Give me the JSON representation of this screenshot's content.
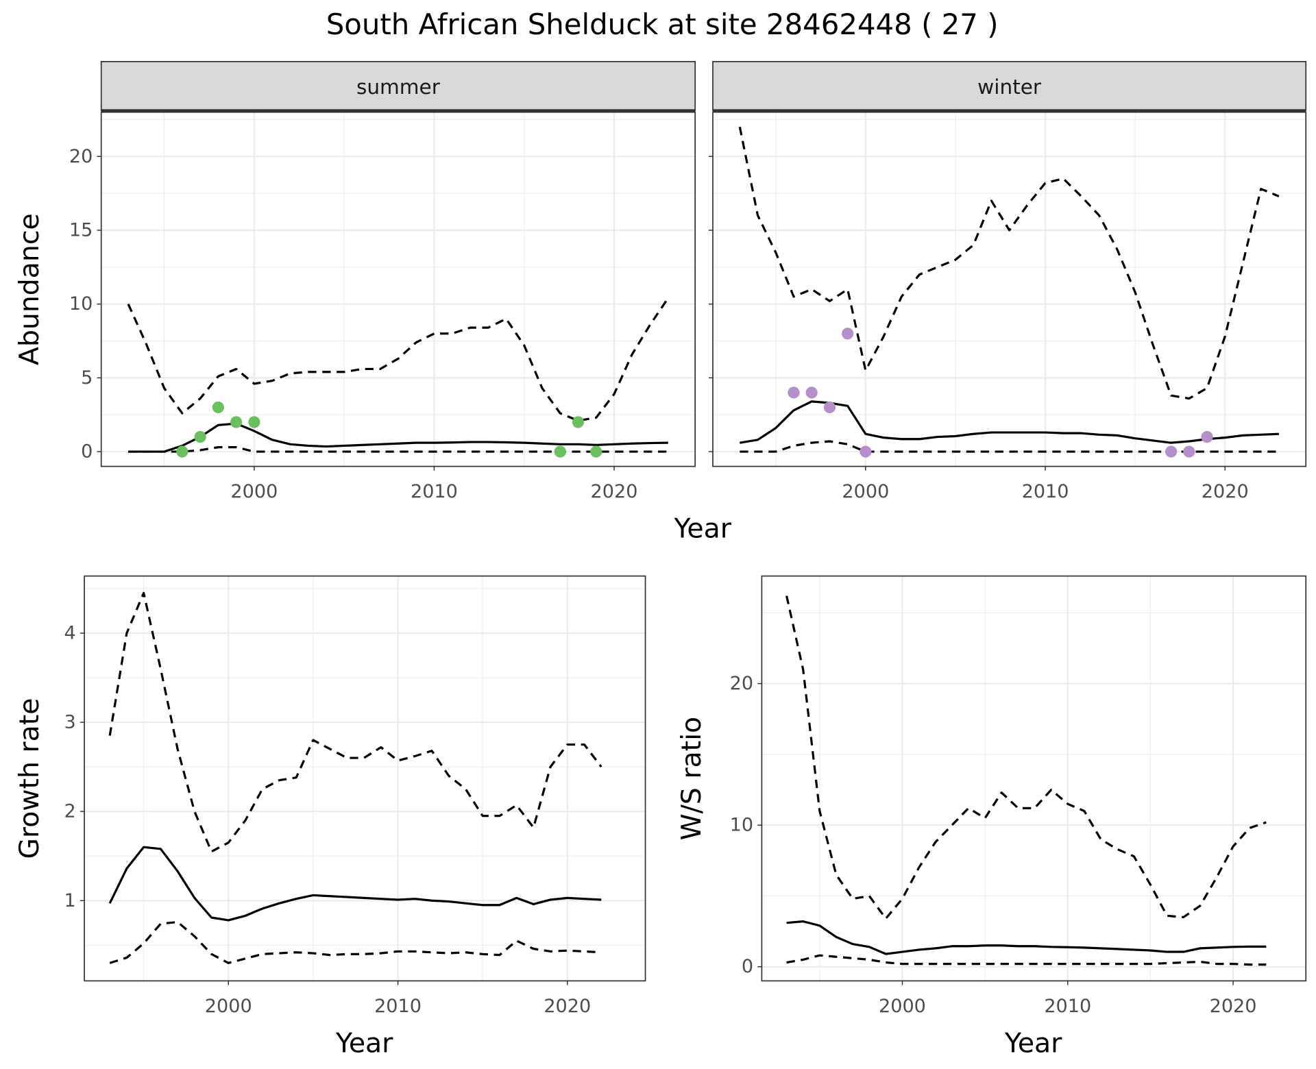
{
  "title": "South African Shelduck at site 28462448 ( 27 )",
  "chart_data": [
    {
      "type": "line",
      "xlabel": "Year",
      "ylabel": "Abundance",
      "xlim": [
        1991.5,
        2024.5
      ],
      "ylim": [
        -1,
        23
      ],
      "xticks": [
        2000,
        2010,
        2020
      ],
      "yticks": [
        0,
        5,
        10,
        15,
        20
      ],
      "grid": true,
      "x": [
        1993,
        1994,
        1995,
        1996,
        1997,
        1998,
        1999,
        2000,
        2001,
        2002,
        2003,
        2004,
        2005,
        2006,
        2007,
        2008,
        2009,
        2010,
        2011,
        2012,
        2013,
        2014,
        2015,
        2016,
        2017,
        2018,
        2019,
        2020,
        2021,
        2022,
        2023
      ],
      "facets": [
        {
          "label": "summer",
          "series": [
            {
              "style": "dashed",
              "color": "#000000",
              "values": [
                10,
                7.3,
                4.3,
                2.6,
                3.6,
                5.1,
                5.6,
                4.6,
                4.8,
                5.3,
                5.4,
                5.4,
                5.4,
                5.6,
                5.6,
                6.3,
                7.4,
                8.0,
                8.0,
                8.4,
                8.4,
                9.0,
                7.2,
                4.3,
                2.6,
                2.1,
                2.3,
                3.9,
                6.6,
                8.6,
                10.4
              ]
            },
            {
              "style": "solid",
              "color": "#000000",
              "values": [
                0,
                0,
                0,
                0.4,
                1.0,
                1.8,
                1.9,
                1.4,
                0.8,
                0.5,
                0.4,
                0.35,
                0.4,
                0.45,
                0.5,
                0.55,
                0.6,
                0.6,
                0.62,
                0.65,
                0.65,
                0.63,
                0.6,
                0.55,
                0.5,
                0.5,
                0.45,
                0.5,
                0.55,
                0.58,
                0.6
              ]
            },
            {
              "style": "dashed",
              "color": "#000000",
              "values": [
                0,
                0,
                0,
                0,
                0.1,
                0.3,
                0.3,
                0,
                0,
                0,
                0,
                0,
                0,
                0,
                0,
                0,
                0,
                0,
                0,
                0,
                0,
                0,
                0,
                0,
                0,
                0,
                0,
                0,
                0,
                0,
                0
              ]
            },
            {
              "style": "points",
              "color": "#6abf5e",
              "x": [
                1996,
                1997,
                1998,
                1999,
                2000,
                2017,
                2018,
                2019
              ],
              "values": [
                0,
                1,
                3,
                2,
                2,
                0,
                2,
                0
              ]
            }
          ]
        },
        {
          "label": "winter",
          "series": [
            {
              "style": "dashed",
              "color": "#000000",
              "values": [
                22,
                16,
                13.5,
                10.5,
                11,
                10.2,
                11,
                5.5,
                7.8,
                10.5,
                12,
                12.5,
                13,
                14,
                17,
                15,
                16.7,
                18.2,
                18.5,
                17.3,
                16,
                13.7,
                10.8,
                7.2,
                3.8,
                3.6,
                4.3,
                7.8,
                12.8,
                17.8,
                17.3
              ]
            },
            {
              "style": "solid",
              "color": "#000000",
              "values": [
                0.6,
                0.8,
                1.6,
                2.8,
                3.4,
                3.3,
                3.1,
                1.2,
                0.95,
                0.85,
                0.85,
                1.0,
                1.05,
                1.2,
                1.3,
                1.3,
                1.3,
                1.3,
                1.25,
                1.25,
                1.15,
                1.1,
                0.9,
                0.75,
                0.6,
                0.7,
                0.85,
                0.95,
                1.1,
                1.15,
                1.2
              ]
            },
            {
              "style": "dashed",
              "color": "#000000",
              "values": [
                0,
                0,
                0,
                0.4,
                0.6,
                0.7,
                0.5,
                0,
                0,
                0,
                0,
                0,
                0,
                0,
                0,
                0,
                0,
                0,
                0,
                0,
                0,
                0,
                0,
                0,
                0,
                0,
                0,
                0,
                0,
                0,
                0
              ]
            },
            {
              "style": "points",
              "color": "#b48fcc",
              "x": [
                1996,
                1997,
                1998,
                1999,
                2000,
                2017,
                2018,
                2019
              ],
              "values": [
                4,
                4,
                3,
                8,
                0,
                0,
                0,
                1
              ]
            }
          ]
        }
      ]
    },
    {
      "type": "line",
      "xlabel": "Year",
      "ylabel": "Growth rate",
      "xlim": [
        1991.5,
        2024.6
      ],
      "ylim": [
        0.1,
        4.64
      ],
      "xticks": [
        2000,
        2010,
        2020
      ],
      "yticks": [
        1,
        2,
        3,
        4
      ],
      "grid": true,
      "x": [
        1993,
        1994,
        1995,
        1996,
        1997,
        1998,
        1999,
        2000,
        2001,
        2002,
        2003,
        2004,
        2005,
        2006,
        2007,
        2008,
        2009,
        2010,
        2011,
        2012,
        2013,
        2014,
        2015,
        2016,
        2017,
        2018,
        2019,
        2020,
        2021,
        2022
      ],
      "series": [
        {
          "style": "dashed",
          "color": "#000000",
          "values": [
            2.85,
            4.0,
            4.45,
            3.6,
            2.7,
            2.0,
            1.55,
            1.65,
            1.9,
            2.25,
            2.35,
            2.38,
            2.8,
            2.7,
            2.6,
            2.6,
            2.72,
            2.57,
            2.62,
            2.68,
            2.4,
            2.25,
            1.95,
            1.95,
            2.07,
            1.82,
            2.5,
            2.75,
            2.75,
            2.5
          ]
        },
        {
          "style": "solid",
          "color": "#000000",
          "values": [
            0.97,
            1.36,
            1.6,
            1.58,
            1.33,
            1.03,
            0.81,
            0.78,
            0.83,
            0.91,
            0.97,
            1.02,
            1.06,
            1.05,
            1.04,
            1.03,
            1.02,
            1.01,
            1.02,
            1.0,
            0.99,
            0.97,
            0.95,
            0.95,
            1.03,
            0.96,
            1.01,
            1.03,
            1.02,
            1.01
          ]
        },
        {
          "style": "dashed",
          "color": "#000000",
          "values": [
            0.3,
            0.36,
            0.52,
            0.74,
            0.76,
            0.6,
            0.4,
            0.3,
            0.35,
            0.4,
            0.41,
            0.42,
            0.41,
            0.39,
            0.4,
            0.4,
            0.41,
            0.43,
            0.43,
            0.42,
            0.41,
            0.42,
            0.4,
            0.39,
            0.55,
            0.46,
            0.43,
            0.44,
            0.43,
            0.42
          ]
        }
      ]
    },
    {
      "type": "line",
      "xlabel": "Year",
      "ylabel": "W/S ratio",
      "xlim": [
        1991.5,
        2024.4
      ],
      "ylim": [
        -1,
        27.6
      ],
      "xticks": [
        2000,
        2010,
        2020
      ],
      "yticks": [
        0,
        10,
        20
      ],
      "grid": true,
      "x": [
        1993,
        1994,
        1995,
        1996,
        1997,
        1998,
        1999,
        2000,
        2001,
        2002,
        2003,
        2004,
        2005,
        2006,
        2007,
        2008,
        2009,
        2010,
        2011,
        2012,
        2013,
        2014,
        2015,
        2016,
        2017,
        2018,
        2019,
        2020,
        2021,
        2022
      ],
      "series": [
        {
          "style": "dashed",
          "color": "#000000",
          "values": [
            26.2,
            21,
            11,
            6.5,
            4.8,
            5,
            3.4,
            4.8,
            7,
            8.8,
            10,
            11.2,
            10.5,
            12.3,
            11.2,
            11.2,
            12.5,
            11.5,
            11,
            9,
            8.3,
            7.8,
            5.8,
            3.6,
            3.5,
            4.3,
            6.3,
            8.5,
            9.8,
            10.2
          ]
        },
        {
          "style": "solid",
          "color": "#000000",
          "values": [
            3.1,
            3.2,
            2.9,
            2.1,
            1.6,
            1.4,
            0.9,
            1.05,
            1.2,
            1.3,
            1.45,
            1.45,
            1.5,
            1.5,
            1.45,
            1.45,
            1.4,
            1.38,
            1.35,
            1.3,
            1.25,
            1.2,
            1.15,
            1.05,
            1.05,
            1.3,
            1.35,
            1.4,
            1.42,
            1.42
          ]
        },
        {
          "style": "dashed",
          "color": "#000000",
          "values": [
            0.3,
            0.5,
            0.8,
            0.7,
            0.6,
            0.5,
            0.3,
            0.2,
            0.2,
            0.2,
            0.2,
            0.2,
            0.2,
            0.2,
            0.2,
            0.2,
            0.2,
            0.2,
            0.2,
            0.2,
            0.2,
            0.2,
            0.2,
            0.25,
            0.3,
            0.35,
            0.2,
            0.2,
            0.15,
            0.15
          ]
        }
      ]
    }
  ]
}
